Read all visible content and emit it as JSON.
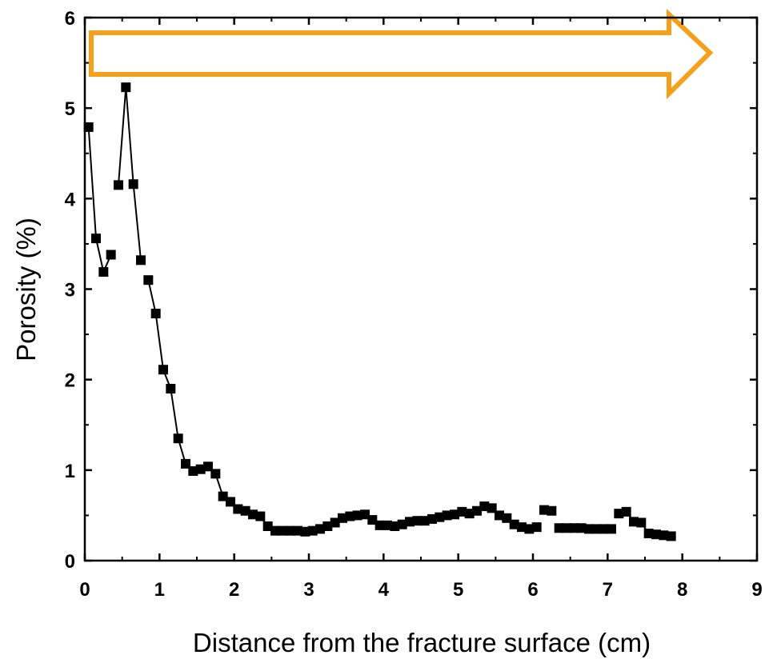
{
  "chart_data": {
    "type": "line",
    "title": "",
    "xlabel": "Distance from the fracture surface (cm)",
    "ylabel": "Porosity (%)",
    "xlim": [
      0,
      9
    ],
    "ylim": [
      0,
      6
    ],
    "xticks": [
      0,
      1,
      2,
      3,
      4,
      5,
      6,
      7,
      8,
      9
    ],
    "yticks": [
      0,
      1,
      2,
      3,
      4,
      5,
      6
    ],
    "xtick_labels": [
      "0",
      "1",
      "2",
      "3",
      "4",
      "5",
      "6",
      "7",
      "8",
      "9"
    ],
    "ytick_labels": [
      "0",
      "1",
      "2",
      "3",
      "4",
      "5",
      "6"
    ],
    "grid": false,
    "marker": "square",
    "arrow_color": "#f5a01a",
    "line_color": "#000000",
    "series": [
      {
        "x": [
          0.05,
          0.15,
          0.25,
          0.35,
          0.45,
          0.55,
          0.65,
          0.75,
          0.85,
          0.95,
          1.05,
          1.15,
          1.25,
          1.35,
          1.45,
          1.55,
          1.65,
          1.75,
          1.85,
          1.95,
          2.05,
          2.15,
          2.25,
          2.35,
          2.45,
          2.55,
          2.65,
          2.75,
          2.85,
          2.95,
          3.05,
          3.15,
          3.25,
          3.35,
          3.45,
          3.55,
          3.65,
          3.75,
          3.85,
          3.95,
          4.05,
          4.15,
          4.25,
          4.35,
          4.45,
          4.55,
          4.65,
          4.75,
          4.85,
          4.95,
          5.05,
          5.15,
          5.25,
          5.35,
          5.45,
          5.55,
          5.65,
          5.75,
          5.85,
          5.95,
          6.05,
          6.15,
          6.25,
          6.35,
          6.45,
          6.55,
          6.65,
          6.75,
          6.85,
          6.95,
          7.05,
          7.15,
          7.25,
          7.35,
          7.45,
          7.55,
          7.65,
          7.75,
          7.85
        ],
        "y": [
          4.79,
          3.56,
          3.19,
          3.38,
          4.15,
          5.23,
          4.16,
          3.32,
          3.1,
          2.73,
          2.11,
          1.9,
          1.35,
          1.07,
          0.99,
          1.01,
          1.04,
          0.96,
          0.71,
          0.65,
          0.57,
          0.55,
          0.51,
          0.49,
          0.38,
          0.33,
          0.33,
          0.33,
          0.33,
          0.32,
          0.33,
          0.35,
          0.38,
          0.42,
          0.47,
          0.49,
          0.5,
          0.51,
          0.45,
          0.39,
          0.39,
          0.38,
          0.4,
          0.43,
          0.44,
          0.44,
          0.46,
          0.48,
          0.5,
          0.51,
          0.54,
          0.52,
          0.55,
          0.6,
          0.58,
          0.5,
          0.47,
          0.4,
          0.37,
          0.35,
          0.37,
          0.56,
          0.55,
          0.36,
          0.36,
          0.36,
          0.36,
          0.35,
          0.35,
          0.35,
          0.35,
          0.52,
          0.54,
          0.43,
          0.42,
          0.3,
          0.29,
          0.28,
          0.27
        ],
        "segments_broken_after_x": [
          0.35,
          0.75,
          2.25,
          4.05,
          4.95,
          6.05,
          6.25,
          7.05
        ]
      }
    ]
  }
}
